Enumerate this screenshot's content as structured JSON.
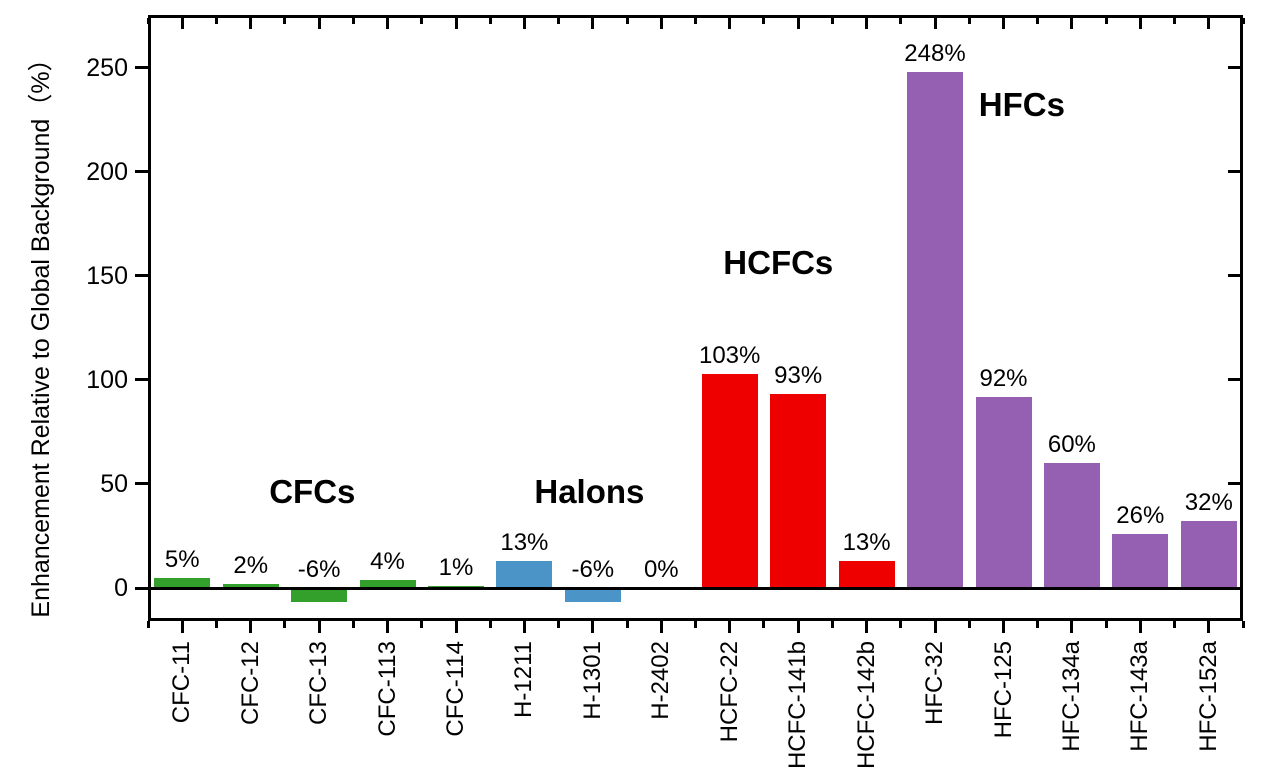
{
  "chart_data": {
    "type": "bar",
    "title": "",
    "xlabel": "",
    "ylabel": "Enhancement Relative to Global Background（%）",
    "ylim": [
      -16,
      275
    ],
    "yticks": [
      0,
      50,
      100,
      150,
      200,
      250
    ],
    "grid": false,
    "legend": "none",
    "categories": [
      "CFC-11",
      "CFC-12",
      "CFC-13",
      "CFC-113",
      "CFC-114",
      "H-1211",
      "H-1301",
      "H-2402",
      "HCFC-22",
      "HCFC-141b",
      "HCFC-142b",
      "HFC-32",
      "HFC-125",
      "HFC-134a",
      "HFC-143a",
      "HFC-152a"
    ],
    "values": [
      5,
      2,
      -6,
      4,
      1,
      13,
      -6,
      0,
      103,
      93,
      13,
      248,
      92,
      60,
      26,
      32
    ],
    "bar_labels": [
      "5%",
      "2%",
      "-6%",
      "4%",
      "1%",
      "13%",
      "-6%",
      "0%",
      "103%",
      "93%",
      "13%",
      "248%",
      "92%",
      "60%",
      "26%",
      "32%"
    ],
    "groups": [
      {
        "name": "CFCs",
        "color": "#33A02C",
        "categories": [
          "CFC-11",
          "CFC-12",
          "CFC-13",
          "CFC-113",
          "CFC-114"
        ]
      },
      {
        "name": "Halons",
        "color": "#4A94C8",
        "categories": [
          "H-1211",
          "H-1301",
          "H-2402"
        ]
      },
      {
        "name": "HCFCs",
        "color": "#EE0000",
        "categories": [
          "HCFC-22",
          "HCFC-141b",
          "HCFC-142b"
        ]
      },
      {
        "name": "HFCs",
        "color": "#9560B2",
        "categories": [
          "HFC-32",
          "HFC-125",
          "HFC-134a",
          "HFC-143a",
          "HFC-152a"
        ]
      }
    ],
    "annotations": [
      {
        "text": "CFCs",
        "x_index": 1.9,
        "y_value": 46
      },
      {
        "text": "Halons",
        "x_index": 5.95,
        "y_value": 46
      },
      {
        "text": "HCFCs",
        "x_index": 8.71,
        "y_value": 156
      },
      {
        "text": "HFCs",
        "x_index": 12.27,
        "y_value": 232
      }
    ],
    "axis_color": "#000000"
  }
}
